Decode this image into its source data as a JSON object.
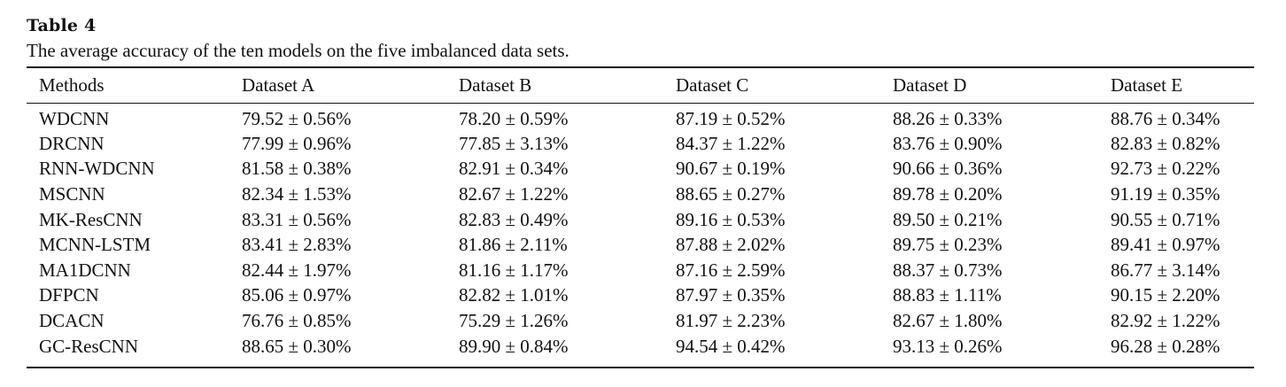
{
  "table": {
    "label": "Table 4",
    "caption": "The average accuracy of the ten models on the five imbalanced data sets.",
    "columns": [
      "Methods",
      "Dataset A",
      "Dataset B",
      "Dataset C",
      "Dataset D",
      "Dataset E"
    ],
    "rows": [
      {
        "method": "WDCNN",
        "values": [
          "79.52 ± 0.56%",
          "78.20 ± 0.59%",
          "87.19 ± 0.52%",
          "88.26 ± 0.33%",
          "88.76 ± 0.34%"
        ]
      },
      {
        "method": "DRCNN",
        "values": [
          "77.99 ± 0.96%",
          "77.85 ± 3.13%",
          "84.37 ± 1.22%",
          "83.76 ± 0.90%",
          "82.83 ± 0.82%"
        ]
      },
      {
        "method": "RNN-WDCNN",
        "values": [
          "81.58 ± 0.38%",
          "82.91 ± 0.34%",
          "90.67 ± 0.19%",
          "90.66 ± 0.36%",
          "92.73 ± 0.22%"
        ]
      },
      {
        "method": "MSCNN",
        "values": [
          "82.34 ± 1.53%",
          "82.67 ± 1.22%",
          "88.65 ± 0.27%",
          "89.78 ± 0.20%",
          "91.19 ± 0.35%"
        ]
      },
      {
        "method": "MK-ResCNN",
        "values": [
          "83.31 ± 0.56%",
          "82.83 ± 0.49%",
          "89.16 ± 0.53%",
          "89.50 ± 0.21%",
          "90.55 ± 0.71%"
        ]
      },
      {
        "method": "MCNN-LSTM",
        "values": [
          "83.41 ± 2.83%",
          "81.86 ± 2.11%",
          "87.88 ± 2.02%",
          "89.75 ± 0.23%",
          "89.41 ± 0.97%"
        ]
      },
      {
        "method": "MA1DCNN",
        "values": [
          "82.44 ± 1.97%",
          "81.16 ± 1.17%",
          "87.16 ± 2.59%",
          "88.37 ± 0.73%",
          "86.77 ± 3.14%"
        ]
      },
      {
        "method": "DFPCN",
        "values": [
          "85.06 ± 0.97%",
          "82.82 ± 1.01%",
          "87.97 ± 0.35%",
          "88.83 ± 1.11%",
          "90.15 ± 2.20%"
        ]
      },
      {
        "method": "DCACN",
        "values": [
          "76.76 ± 0.85%",
          "75.29 ± 1.26%",
          "81.97 ± 2.23%",
          "82.67 ± 1.80%",
          "82.92 ± 1.22%"
        ]
      },
      {
        "method": "GC-ResCNN",
        "values": [
          "88.65 ± 0.30%",
          "89.90 ± 0.84%",
          "94.54 ± 0.42%",
          "93.13 ± 0.26%",
          "96.28 ± 0.28%"
        ]
      }
    ]
  }
}
